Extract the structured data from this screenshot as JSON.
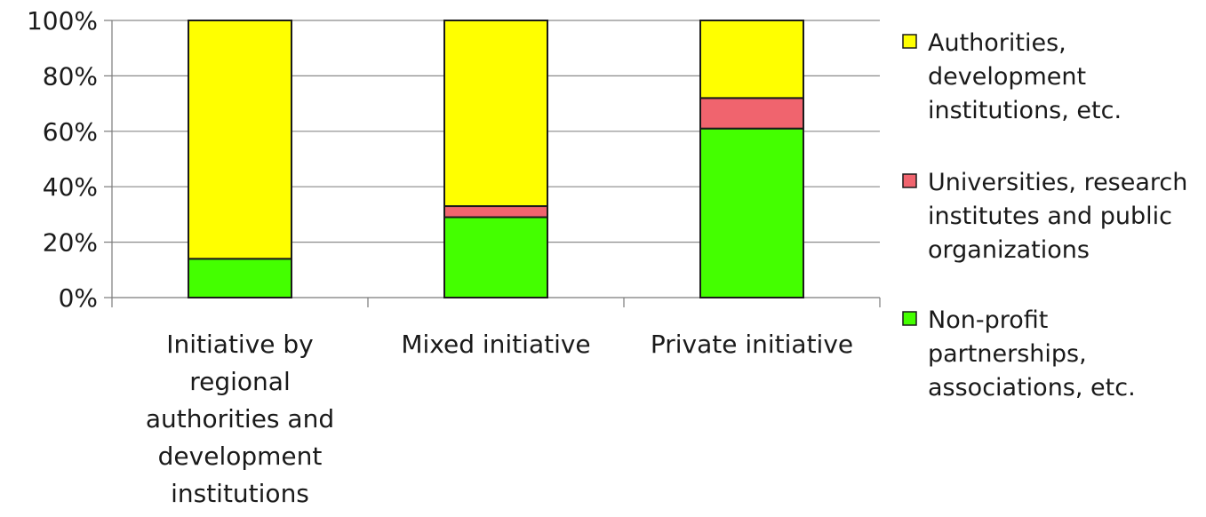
{
  "chart_data": {
    "type": "bar",
    "stacked": true,
    "categories": [
      [
        "Initiative by",
        "regional",
        "authorities and",
        "development",
        "institutions"
      ],
      [
        "Mixed initiative"
      ],
      [
        "Private initiative"
      ]
    ],
    "series": [
      {
        "name": [
          "Non-profit",
          "partnerships,",
          "associations, etc."
        ],
        "color": "#44ff00",
        "values": [
          14,
          29,
          61
        ]
      },
      {
        "name": [
          "Universities, research",
          "institutes and public",
          "organizations"
        ],
        "color": "#f0646e",
        "values": [
          0,
          4,
          11
        ]
      },
      {
        "name": [
          "Authorities,",
          "development",
          "institutions, etc."
        ],
        "color": "#ffff00",
        "values": [
          86,
          67,
          28
        ]
      }
    ],
    "yticks": [
      "0%",
      "20%",
      "40%",
      "60%",
      "80%",
      "100%"
    ],
    "ylim": [
      0,
      100
    ],
    "grid": true,
    "legend_position": "right",
    "legend_order": [
      2,
      1,
      0
    ]
  }
}
